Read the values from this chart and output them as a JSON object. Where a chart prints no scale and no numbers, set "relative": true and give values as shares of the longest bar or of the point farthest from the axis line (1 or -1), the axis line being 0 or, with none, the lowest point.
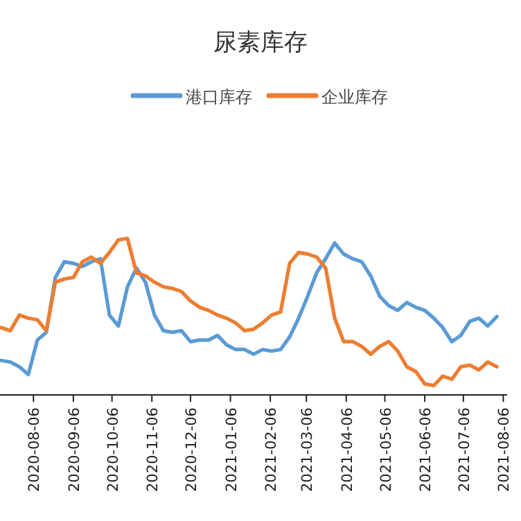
{
  "chart_data": {
    "type": "line",
    "title": "尿素库存",
    "relative": true,
    "legend": "top",
    "x": [
      "2020-07-12",
      "2020-07-19",
      "2020-07-26",
      "2020-08-02",
      "2020-08-09",
      "2020-08-16",
      "2020-08-23",
      "2020-08-30",
      "2020-09-06",
      "2020-09-13",
      "2020-09-20",
      "2020-09-27",
      "2020-10-04",
      "2020-10-11",
      "2020-10-18",
      "2020-10-25",
      "2020-11-01",
      "2020-11-08",
      "2020-11-15",
      "2020-11-22",
      "2020-11-29",
      "2020-12-06",
      "2020-12-13",
      "2020-12-20",
      "2020-12-27",
      "2021-01-03",
      "2021-01-10",
      "2021-01-17",
      "2021-01-24",
      "2021-01-31",
      "2021-02-07",
      "2021-02-14",
      "2021-02-21",
      "2021-02-28",
      "2021-03-07",
      "2021-03-14",
      "2021-03-21",
      "2021-03-28",
      "2021-04-04",
      "2021-04-11",
      "2021-04-18",
      "2021-04-25",
      "2021-05-02",
      "2021-05-09",
      "2021-05-16",
      "2021-05-23",
      "2021-05-30",
      "2021-06-06",
      "2021-06-13",
      "2021-06-20",
      "2021-06-27",
      "2021-07-04",
      "2021-07-11",
      "2021-07-18",
      "2021-07-25",
      "2021-08-01"
    ],
    "xlim": [
      "2020-07-11",
      "2021-08-09"
    ],
    "xticks": [
      "2020-08-06",
      "2020-09-06",
      "2020-10-06",
      "2020-11-06",
      "2020-12-06",
      "2021-01-06",
      "2021-02-06",
      "2021-03-06",
      "2021-04-06",
      "2021-05-06",
      "2021-06-06",
      "2021-07-06",
      "2021-08-06"
    ],
    "series": [
      {
        "name": "港口库存",
        "color": "#5b9bd5",
        "values": [
          0.22,
          0.21,
          0.18,
          0.13,
          0.35,
          0.4,
          0.75,
          0.85,
          0.84,
          0.82,
          0.85,
          0.87,
          0.51,
          0.44,
          0.69,
          0.81,
          0.72,
          0.51,
          0.41,
          0.4,
          0.41,
          0.34,
          0.35,
          0.35,
          0.38,
          0.32,
          0.29,
          0.29,
          0.26,
          0.29,
          0.28,
          0.29,
          0.37,
          0.49,
          0.63,
          0.78,
          0.87,
          0.97,
          0.9,
          0.87,
          0.85,
          0.76,
          0.63,
          0.57,
          0.54,
          0.59,
          0.56,
          0.54,
          0.49,
          0.43,
          0.34,
          0.38,
          0.47,
          0.49,
          0.44,
          0.5
        ]
      },
      {
        "name": "企业库存",
        "color": "#ed7d31",
        "values": [
          0.43,
          0.41,
          0.51,
          0.49,
          0.48,
          0.41,
          0.72,
          0.74,
          0.75,
          0.85,
          0.88,
          0.84,
          0.91,
          0.99,
          1.0,
          0.78,
          0.76,
          0.72,
          0.69,
          0.68,
          0.66,
          0.6,
          0.56,
          0.54,
          0.51,
          0.49,
          0.46,
          0.41,
          0.42,
          0.46,
          0.51,
          0.53,
          0.84,
          0.91,
          0.9,
          0.88,
          0.81,
          0.49,
          0.34,
          0.34,
          0.31,
          0.26,
          0.31,
          0.34,
          0.28,
          0.18,
          0.15,
          0.07,
          0.06,
          0.12,
          0.1,
          0.18,
          0.19,
          0.16,
          0.21,
          0.18
        ]
      }
    ]
  }
}
